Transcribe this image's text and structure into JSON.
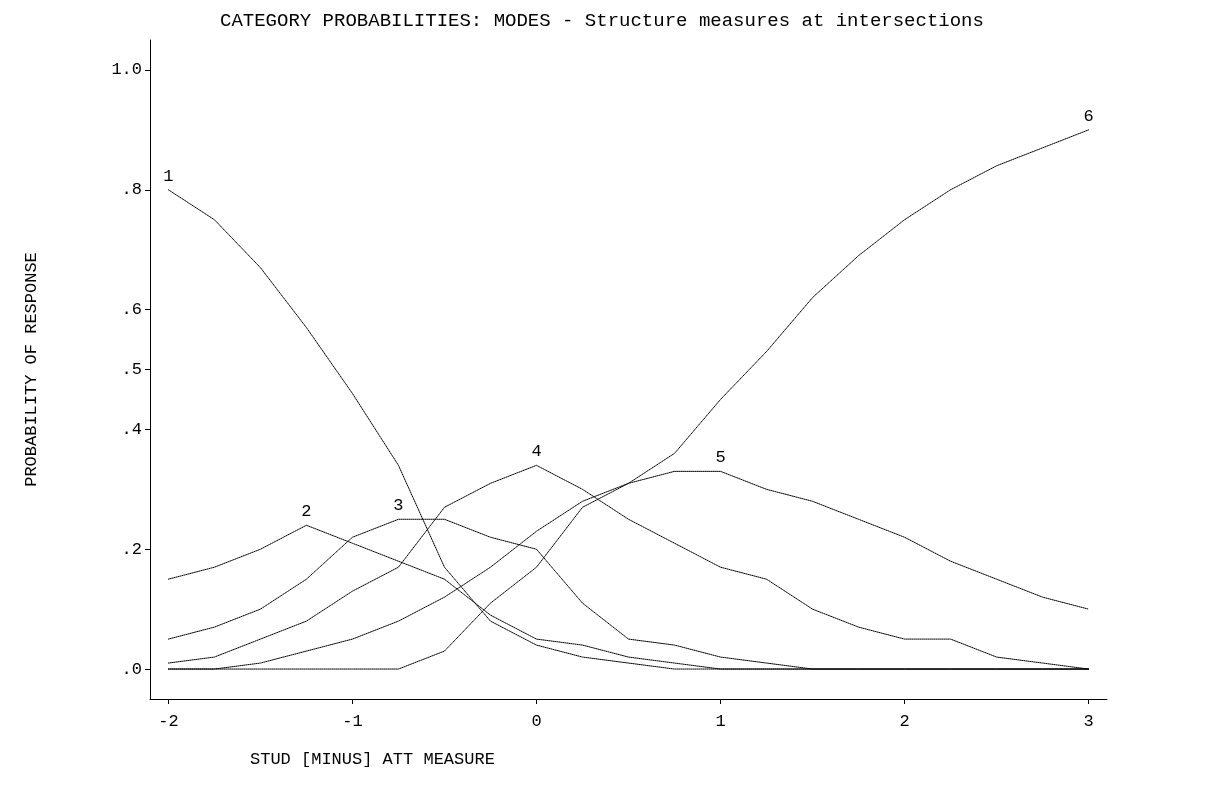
{
  "chart_data": {
    "type": "line",
    "title": "CATEGORY PROBABILITIES: MODES - Structure measures at intersections",
    "xlabel": "STUD [MINUS] ATT MEASURE",
    "ylabel": "PROBABILITY OF RESPONSE",
    "x": [
      -2,
      -1.75,
      -1.5,
      -1.25,
      -1,
      -0.75,
      -0.5,
      -0.25,
      0,
      0.25,
      0.5,
      0.75,
      1,
      1.25,
      1.5,
      1.75,
      2,
      2.25,
      2.5,
      2.75,
      3
    ],
    "series": [
      {
        "name": "1",
        "color": "#000000",
        "values": [
          0.8,
          0.75,
          0.67,
          0.57,
          0.46,
          0.34,
          0.17,
          0.08,
          0.04,
          0.02,
          0.01,
          0,
          0,
          0,
          0,
          0,
          0,
          0,
          0,
          0,
          0
        ]
      },
      {
        "name": "2",
        "color": "#000000",
        "values": [
          0.15,
          0.17,
          0.2,
          0.24,
          0.21,
          0.18,
          0.15,
          0.09,
          0.05,
          0.04,
          0.02,
          0.01,
          0,
          0,
          0,
          0,
          0,
          0,
          0,
          0,
          0
        ]
      },
      {
        "name": "3",
        "color": "#000000",
        "values": [
          0.05,
          0.07,
          0.1,
          0.15,
          0.22,
          0.25,
          0.25,
          0.22,
          0.2,
          0.11,
          0.05,
          0.04,
          0.02,
          0.01,
          0,
          0,
          0,
          0,
          0,
          0,
          0
        ]
      },
      {
        "name": "4",
        "color": "#000000",
        "values": [
          0.01,
          0.02,
          0.05,
          0.08,
          0.13,
          0.17,
          0.27,
          0.31,
          0.34,
          0.3,
          0.25,
          0.21,
          0.17,
          0.15,
          0.1,
          0.07,
          0.05,
          0.05,
          0.02,
          0.01,
          0
        ]
      },
      {
        "name": "5",
        "color": "#000000",
        "values": [
          0,
          0,
          0.01,
          0.03,
          0.05,
          0.08,
          0.12,
          0.17,
          0.23,
          0.28,
          0.31,
          0.33,
          0.33,
          0.3,
          0.28,
          0.25,
          0.22,
          0.18,
          0.15,
          0.12,
          0.1
        ]
      },
      {
        "name": "6",
        "color": "#000000",
        "values": [
          0,
          0,
          0,
          0,
          0,
          0,
          0.03,
          0.11,
          0.17,
          0.27,
          0.31,
          0.36,
          0.45,
          0.53,
          0.62,
          0.69,
          0.75,
          0.8,
          0.84,
          0.87,
          0.9
        ]
      }
    ],
    "xlim": [
      -2.1,
      3.1
    ],
    "xticks": [
      -2,
      -1,
      0,
      1,
      2,
      3
    ],
    "ylim": [
      -0.05,
      1.05
    ],
    "yticks": [
      {
        "value": 0,
        "label": ".0"
      },
      {
        "value": 0.2,
        "label": ".2"
      },
      {
        "value": 0.4,
        "label": ".4"
      },
      {
        "value": 0.5,
        "label": ".5"
      },
      {
        "value": 0.6,
        "label": ".6"
      },
      {
        "value": 0.8,
        "label": ".8"
      },
      {
        "value": 1,
        "label": "1.0"
      }
    ],
    "grid": false,
    "legend": false,
    "marker": "none",
    "line_style": "dotted"
  }
}
